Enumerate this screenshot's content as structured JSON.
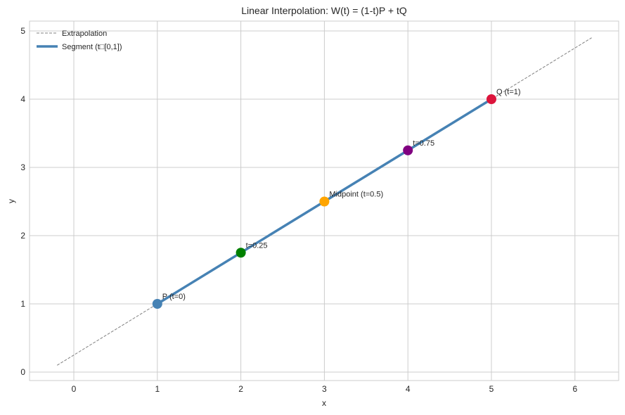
{
  "chart_data": {
    "type": "line",
    "title": "Linear Interpolation: W(t) = (1-t)P + tQ",
    "xlabel": "x",
    "ylabel": "y",
    "xlim": [
      -0.53,
      6.52
    ],
    "ylim": [
      -0.13,
      5.13
    ],
    "xticks": [
      0,
      1,
      2,
      3,
      4,
      5,
      6
    ],
    "yticks": [
      0,
      1,
      2,
      3,
      4,
      5
    ],
    "grid": true,
    "legend_position": "upper left",
    "series": [
      {
        "name": "Extrapolation",
        "style": "dashed",
        "color": "#808080",
        "x": [
          -0.2,
          6.2
        ],
        "y": [
          0.1,
          4.9
        ]
      },
      {
        "name": "Segment (t□[0,1])",
        "style": "solid",
        "color": "#4682b4",
        "x": [
          1,
          5
        ],
        "y": [
          1,
          4
        ]
      }
    ],
    "points": [
      {
        "label": "P (t=0)",
        "x": 1,
        "y": 1,
        "color": "#4682b4"
      },
      {
        "label": "t=0.25",
        "x": 2,
        "y": 1.75,
        "color": "#008000"
      },
      {
        "label": "Midpoint (t=0.5)",
        "x": 3,
        "y": 2.5,
        "color": "#ffa500"
      },
      {
        "label": "t=0.75",
        "x": 4,
        "y": 3.25,
        "color": "#800080"
      },
      {
        "label": "Q (t=1)",
        "x": 5,
        "y": 4,
        "color": "#dc143c"
      }
    ]
  },
  "legend": {
    "items": [
      {
        "label": "Extrapolation"
      },
      {
        "label": "Segment (t□[0,1])"
      }
    ]
  },
  "colors": {
    "grid": "#cccccc",
    "spine": "#cccccc",
    "extrapolation": "#808080",
    "segment": "#4682b4"
  }
}
